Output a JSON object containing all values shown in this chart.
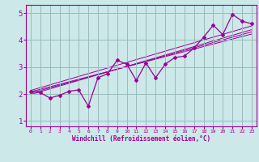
{
  "xlabel": "Windchill (Refroidissement éolien,°C)",
  "bg_color": "#cce8e8",
  "line_color": "#990099",
  "grid_color": "#99bbbb",
  "xlim": [
    -0.5,
    23.5
  ],
  "ylim": [
    0.8,
    5.3
  ],
  "xticks": [
    0,
    1,
    2,
    3,
    4,
    5,
    6,
    7,
    8,
    9,
    10,
    11,
    12,
    13,
    14,
    15,
    16,
    17,
    18,
    19,
    20,
    21,
    22,
    23
  ],
  "yticks": [
    1,
    2,
    3,
    4,
    5
  ],
  "data_x": [
    0,
    1,
    2,
    3,
    4,
    5,
    6,
    7,
    8,
    9,
    10,
    11,
    12,
    13,
    14,
    15,
    16,
    17,
    18,
    19,
    20,
    21,
    22,
    23
  ],
  "data_y": [
    2.1,
    2.05,
    1.85,
    1.95,
    2.1,
    2.15,
    1.55,
    2.6,
    2.75,
    3.25,
    3.1,
    2.5,
    3.15,
    2.6,
    3.1,
    3.35,
    3.4,
    3.7,
    4.1,
    4.55,
    4.2,
    4.95,
    4.7,
    4.6
  ],
  "regression_lines": [
    {
      "x": [
        0,
        23
      ],
      "y": [
        2.08,
        4.22
      ]
    },
    {
      "x": [
        0,
        23
      ],
      "y": [
        2.03,
        4.3
      ]
    },
    {
      "x": [
        0,
        23
      ],
      "y": [
        1.98,
        4.38
      ]
    },
    {
      "x": [
        0,
        23
      ],
      "y": [
        2.13,
        4.52
      ]
    }
  ]
}
